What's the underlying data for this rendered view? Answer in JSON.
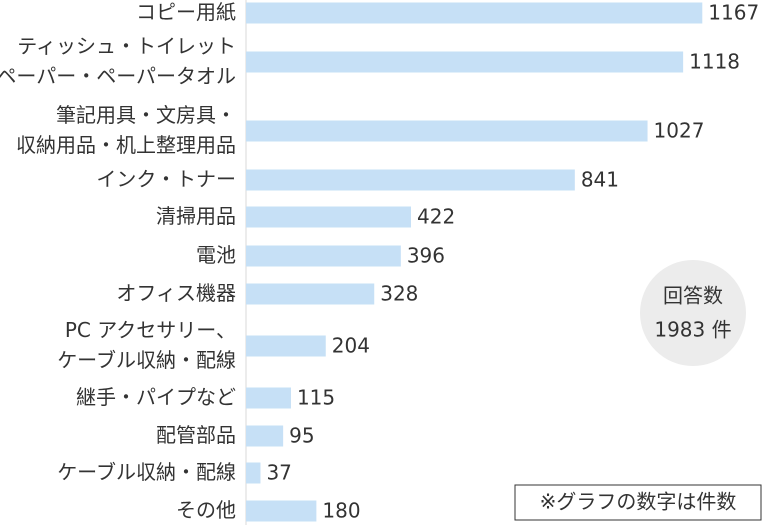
{
  "chart_data": {
    "type": "bar",
    "orientation": "horizontal",
    "categories": [
      [
        "コピー用紙"
      ],
      [
        "ティッシュ・トイレット",
        "ペーパー・ペーパータオル"
      ],
      [
        "筆記用具・文房具・",
        "収納用品・机上整理用品"
      ],
      [
        "インク・トナー"
      ],
      [
        "清掃用品"
      ],
      [
        "電池"
      ],
      [
        "オフィス機器"
      ],
      [
        "PC アクセサリー、",
        "ケーブル収納・配線"
      ],
      [
        "継手・パイプなど"
      ],
      [
        "配管部品"
      ],
      [
        "ケーブル収納・配線"
      ],
      [
        "その他"
      ]
    ],
    "values": [
      1167,
      1118,
      1027,
      841,
      422,
      396,
      328,
      204,
      115,
      95,
      37,
      180
    ],
    "color": "#c6e0f6",
    "annotations": {
      "total": [
        "回答数",
        "1983 件"
      ],
      "note": "※グラフの数字は件数"
    }
  }
}
